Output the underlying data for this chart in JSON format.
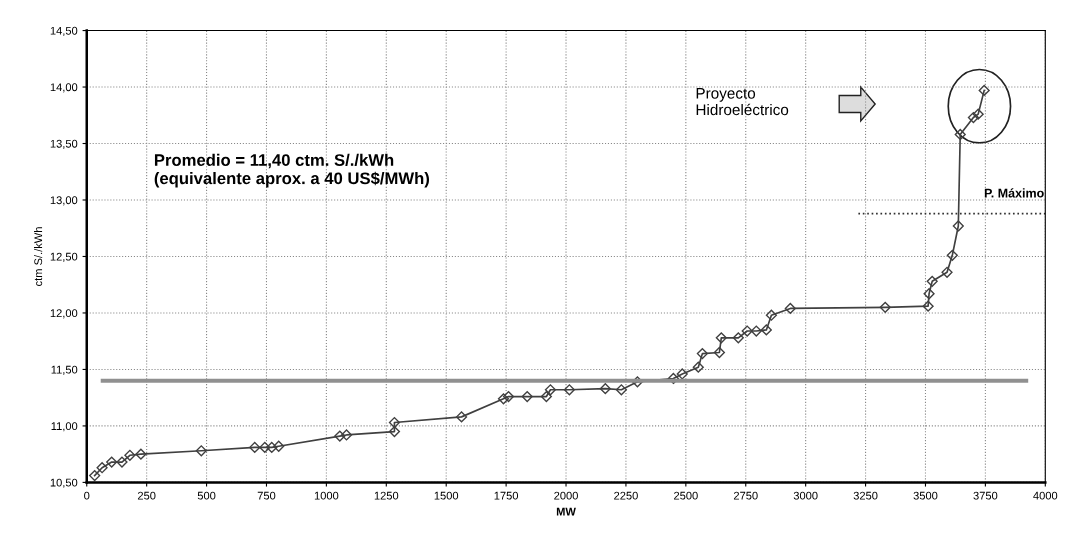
{
  "chart_data": {
    "type": "line",
    "xlabel": "MW",
    "ylabel": "ctm S/./kWh",
    "xlim": [
      0,
      4000
    ],
    "xticks": [
      0,
      250,
      500,
      750,
      1000,
      1250,
      1500,
      1750,
      2000,
      2250,
      2500,
      2750,
      3000,
      3250,
      3500,
      3750,
      4000
    ],
    "ylim": [
      10.5,
      14.5
    ],
    "yticks": [
      {
        "value": 10.5,
        "label": "10,50"
      },
      {
        "value": 11.0,
        "label": "11,00"
      },
      {
        "value": 11.5,
        "label": "11,50"
      },
      {
        "value": 12.0,
        "label": "12,00"
      },
      {
        "value": 12.5,
        "label": "12,50"
      },
      {
        "value": 13.0,
        "label": "13,00"
      },
      {
        "value": 13.5,
        "label": "13,50"
      },
      {
        "value": 14.0,
        "label": "14,00"
      },
      {
        "value": 14.5,
        "label": "14,50"
      }
    ],
    "grid": true,
    "series": [
      {
        "color": "#404040",
        "marker": "diamond",
        "line_style": "solid",
        "x": [
          33,
          64,
          104,
          147,
          180,
          226,
          478,
          701,
          743,
          772,
          801,
          1056,
          1084,
          1284,
          1284,
          1564,
          1739,
          1760,
          1838,
          1918,
          1935,
          2014,
          2164,
          2231,
          2298,
          2448,
          2485,
          2552,
          2569,
          2640,
          2648,
          2719,
          2756,
          2794,
          2836,
          2857,
          2936,
          3332,
          3511,
          3515,
          3528,
          3590,
          3612,
          3637,
          3645,
          3700,
          3720,
          3745
        ],
        "values": [
          10.56,
          10.63,
          10.68,
          10.68,
          10.74,
          10.75,
          10.78,
          10.81,
          10.81,
          10.81,
          10.82,
          10.91,
          10.92,
          10.95,
          11.03,
          11.08,
          11.24,
          11.26,
          11.26,
          11.26,
          11.32,
          11.32,
          11.33,
          11.32,
          11.39,
          11.42,
          11.46,
          11.52,
          11.64,
          11.65,
          11.78,
          11.78,
          11.84,
          11.84,
          11.85,
          11.98,
          12.04,
          12.05,
          12.06,
          12.17,
          12.28,
          12.36,
          12.51,
          12.77,
          13.58,
          13.73,
          13.76,
          13.97
        ]
      },
      {
        "color": "#909090",
        "marker": "none",
        "line_style": "solid",
        "x": [
          67,
          3920
        ],
        "values": [
          11.4,
          11.4
        ]
      },
      {
        "color": "#303030",
        "marker": "none",
        "line_style": "dotted",
        "x": [
          3220,
          4000
        ],
        "values": [
          12.88,
          12.88
        ]
      }
    ],
    "annotations": [
      "Promedio = 11,40 ctm. S/./kWh\n(equivalente aprox. a 40 US$/MWh)",
      {
        "text": "P. Máximo",
        "x": 3870,
        "y": 12.88
      },
      "Proyecto\nHidroeléctrico"
    ]
  }
}
